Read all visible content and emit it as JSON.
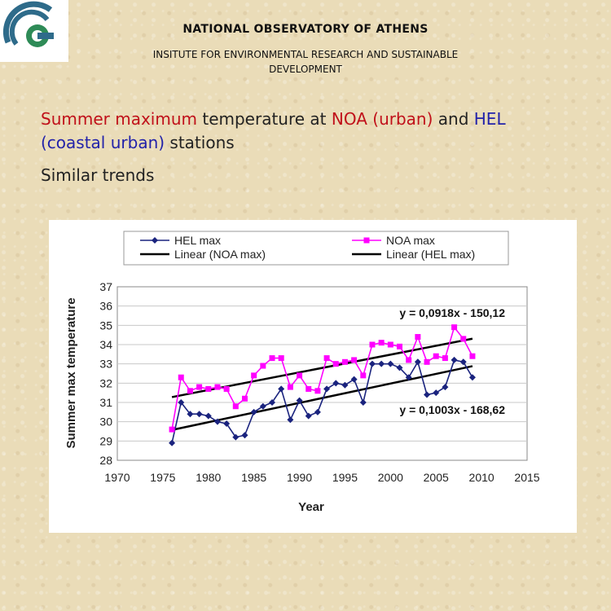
{
  "header": {
    "title": "NATIONAL OBSERVATORY OF ATHENS",
    "institute_line1": "INSITUTE FOR ENVIRONMENTAL RESEARCH AND SUSTAINABLE",
    "institute_line2": "DEVELOPMENT"
  },
  "headline": {
    "part1": "Summer maximum",
    "part2": " temperature at ",
    "part3": "NOA (urban)",
    "part4": " and ",
    "part5": "HEL",
    "part6": "(coastal urban)",
    "part7": " stations"
  },
  "subheading": "Similar trends",
  "colors": {
    "hel": "#1a237e",
    "noa": "#ff00ff",
    "trend": "#000000",
    "accent_red": "#c0101a",
    "accent_blue": "#2222aa"
  },
  "chart_data": {
    "type": "line",
    "xlabel": "Year",
    "ylabel": "Summer max temperature",
    "xlim": [
      1970,
      2015
    ],
    "ylim": [
      28,
      37
    ],
    "xticks": [
      1970,
      1975,
      1980,
      1985,
      1990,
      1995,
      2000,
      2005,
      2010,
      2015
    ],
    "yticks": [
      28,
      29,
      30,
      31,
      32,
      33,
      34,
      35,
      36,
      37
    ],
    "grid": "horizontal",
    "legend_position": "top",
    "legend": [
      "HEL max",
      "NOA max",
      "Linear (NOA max)",
      "Linear (HEL max)"
    ],
    "series": [
      {
        "name": "HEL max",
        "x": [
          1976,
          1977,
          1978,
          1979,
          1980,
          1981,
          1982,
          1983,
          1984,
          1985,
          1986,
          1987,
          1988,
          1989,
          1990,
          1991,
          1992,
          1993,
          1994,
          1995,
          1996,
          1997,
          1998,
          1999,
          2000,
          2001,
          2002,
          2003,
          2004,
          2005,
          2006,
          2007,
          2008,
          2009
        ],
        "y": [
          28.9,
          31.0,
          30.4,
          30.4,
          30.3,
          30.0,
          29.9,
          29.2,
          29.3,
          30.5,
          30.8,
          31.0,
          31.7,
          30.1,
          31.1,
          30.3,
          30.5,
          31.7,
          32.0,
          31.9,
          32.2,
          31.0,
          33.0,
          33.0,
          33.0,
          32.8,
          32.3,
          33.1,
          31.4,
          31.5,
          31.8,
          33.2,
          33.1,
          32.3
        ]
      },
      {
        "name": "NOA max",
        "x": [
          1976,
          1977,
          1978,
          1979,
          1980,
          1981,
          1982,
          1983,
          1984,
          1985,
          1986,
          1987,
          1988,
          1989,
          1990,
          1991,
          1992,
          1993,
          1994,
          1995,
          1996,
          1997,
          1998,
          1999,
          2000,
          2001,
          2002,
          2003,
          2004,
          2005,
          2006,
          2007,
          2008,
          2009
        ],
        "y": [
          29.6,
          32.3,
          31.6,
          31.8,
          31.7,
          31.8,
          31.7,
          30.8,
          31.2,
          32.4,
          32.9,
          33.3,
          33.3,
          31.8,
          32.4,
          31.7,
          31.6,
          33.3,
          33.0,
          33.1,
          33.2,
          32.4,
          34.0,
          34.1,
          34.0,
          33.9,
          33.2,
          34.4,
          33.1,
          33.4,
          33.3,
          34.9,
          34.3,
          33.4
        ]
      }
    ],
    "trendlines": [
      {
        "name": "Linear (NOA max)",
        "equation": "y = 0,0918x - 150,12",
        "slope": 0.0918,
        "intercept": -150.12,
        "x_range": [
          1976,
          2009
        ]
      },
      {
        "name": "Linear (HEL max)",
        "equation": "y = 0,1003x - 168,62",
        "slope": 0.1003,
        "intercept": -168.62,
        "x_range": [
          1976,
          2009
        ]
      }
    ]
  }
}
